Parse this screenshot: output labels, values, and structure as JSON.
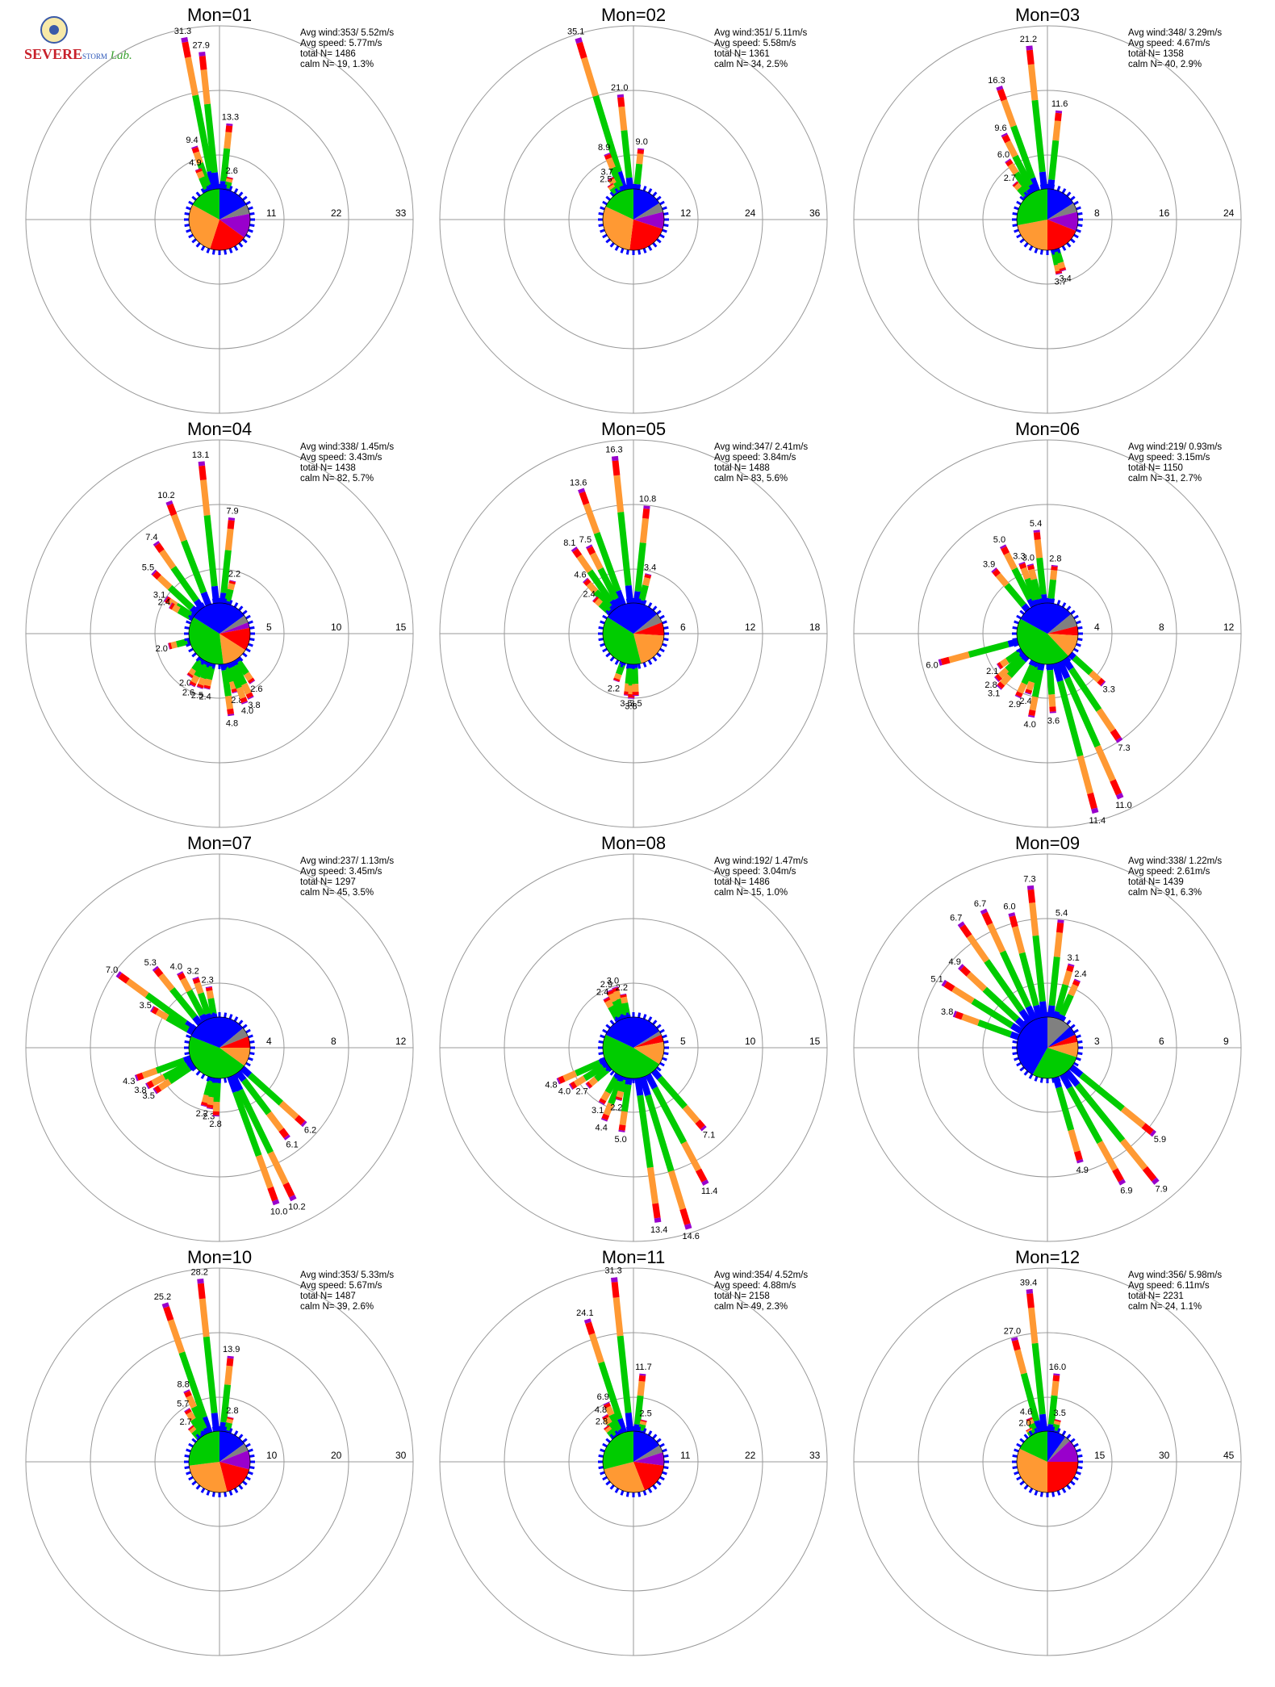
{
  "logo": {
    "line1": "SEVERE",
    "line2": "STORM",
    "line3": "Lab."
  },
  "colors": {
    "calm": "#808080",
    "blue": "#0000ff",
    "green": "#00cc00",
    "orange": "#ff9933",
    "red": "#ff0000",
    "purple": "#9900cc",
    "grid": "#999999"
  },
  "chart_data": [
    {
      "type": "polar-bar",
      "title": "Mon=01",
      "stats": [
        "Avg wind:353/ 5.52m/s",
        "Avg speed: 5.77m/s",
        "total N=      1486",
        "calm N=    19,   1.3%"
      ],
      "rings": [
        "11",
        "22",
        "33"
      ],
      "rmax": 33,
      "bars": [
        [
          349,
          31.3,
          "31.3"
        ],
        [
          354,
          27.9,
          "27.9"
        ],
        [
          6,
          13.3,
          "13.3"
        ],
        [
          341,
          9.4,
          "9.4"
        ],
        [
          337,
          4.9,
          "4.9"
        ],
        [
          14,
          2.6,
          "2.6"
        ]
      ],
      "pie": [
        [
          0.17,
          "blue"
        ],
        [
          0.05,
          "calm"
        ],
        [
          0.13,
          "purple"
        ],
        [
          0.2,
          "red"
        ],
        [
          0.28,
          "orange"
        ],
        [
          0.17,
          "green"
        ]
      ]
    },
    {
      "type": "polar-bar",
      "title": "Mon=02",
      "stats": [
        "Avg wind:351/ 5.11m/s",
        "Avg speed: 5.58m/s",
        "total N=      1361",
        "calm N=    34,   2.5%"
      ],
      "rings": [
        "12",
        "24",
        "36"
      ],
      "rmax": 36,
      "bars": [
        [
          343,
          35.1,
          "35.1"
        ],
        [
          354,
          21.0,
          "21.0"
        ],
        [
          6,
          9.0,
          "9.0"
        ],
        [
          338,
          8.9,
          "8.9"
        ],
        [
          331,
          3.7,
          "3.7"
        ],
        [
          326,
          2.5,
          "2.5"
        ]
      ],
      "pie": [
        [
          0.16,
          "blue"
        ],
        [
          0.05,
          "calm"
        ],
        [
          0.09,
          "purple"
        ],
        [
          0.22,
          "red"
        ],
        [
          0.3,
          "orange"
        ],
        [
          0.18,
          "green"
        ]
      ]
    },
    {
      "type": "polar-bar",
      "title": "Mon=03",
      "stats": [
        "Avg wind:348/ 3.29m/s",
        "Avg speed: 4.67m/s",
        "total N=      1358",
        "calm N=    40,   2.9%"
      ],
      "rings": [
        "8",
        "16",
        "24"
      ],
      "rmax": 24,
      "bars": [
        [
          354,
          21.2,
          "21.2"
        ],
        [
          340,
          16.3,
          "16.3"
        ],
        [
          6,
          11.6,
          "11.6"
        ],
        [
          333,
          9.6,
          "9.6"
        ],
        [
          326,
          6.0,
          "6.0"
        ],
        [
          318,
          2.7,
          "2.7"
        ],
        [
          168,
          3.7,
          "3.7"
        ],
        [
          163,
          3.4,
          "3.4"
        ]
      ],
      "pie": [
        [
          0.16,
          "blue"
        ],
        [
          0.05,
          "calm"
        ],
        [
          0.1,
          "purple"
        ],
        [
          0.19,
          "red"
        ],
        [
          0.22,
          "orange"
        ],
        [
          0.28,
          "green"
        ]
      ]
    },
    {
      "type": "polar-bar",
      "title": "Mon=04",
      "stats": [
        "Avg wind:338/ 1.45m/s",
        "Avg speed: 3.43m/s",
        "total N=      1438",
        "calm N=    82,   5.7%"
      ],
      "rings": [
        "5",
        "10",
        "15"
      ],
      "rmax": 15,
      "bars": [
        [
          354,
          13.1,
          "13.1"
        ],
        [
          339,
          10.2,
          "10.2"
        ],
        [
          6,
          7.9,
          "7.9"
        ],
        [
          325,
          7.4,
          "7.4"
        ],
        [
          313,
          5.5,
          "5.5"
        ],
        [
          303,
          3.1,
          "3.1"
        ],
        [
          300,
          2.4,
          "2.4"
        ],
        [
          14,
          2.2,
          "2.2"
        ],
        [
          256,
          2.0,
          "2.0"
        ],
        [
          215,
          2.0,
          "2.0"
        ],
        [
          208,
          2.6,
          "2.6"
        ],
        [
          200,
          2.5,
          "2.5"
        ],
        [
          193,
          2.4,
          "2.4"
        ],
        [
          172,
          4.8,
          "4.8"
        ],
        [
          165,
          2.8,
          "2.8"
        ],
        [
          160,
          4.0,
          "4.0"
        ],
        [
          154,
          3.8,
          "3.8"
        ],
        [
          146,
          2.6,
          "2.6"
        ]
      ],
      "pie": [
        [
          0.15,
          "blue"
        ],
        [
          0.04,
          "calm"
        ],
        [
          0.03,
          "purple"
        ],
        [
          0.12,
          "red"
        ],
        [
          0.14,
          "orange"
        ],
        [
          0.36,
          "green"
        ],
        [
          0.16,
          "blue"
        ]
      ]
    },
    {
      "type": "polar-bar",
      "title": "Mon=05",
      "stats": [
        "Avg wind:347/ 2.41m/s",
        "Avg speed: 3.84m/s",
        "total N=      1488",
        "calm N=    83,   5.6%"
      ],
      "rings": [
        "6",
        "12",
        "18"
      ],
      "rmax": 18,
      "bars": [
        [
          354,
          16.3,
          "16.3"
        ],
        [
          340,
          13.6,
          "13.6"
        ],
        [
          6,
          10.8,
          "10.8"
        ],
        [
          333,
          7.5,
          "7.5"
        ],
        [
          325,
          8.1,
          "8.1"
        ],
        [
          318,
          4.6,
          "4.6"
        ],
        [
          312,
          2.4,
          "2.4"
        ],
        [
          14,
          3.4,
          "3.4"
        ],
        [
          200,
          2.2,
          "2.2"
        ],
        [
          186,
          3.5,
          "3.5"
        ],
        [
          182,
          3.8,
          "3.8"
        ],
        [
          178,
          3.5,
          "3.5"
        ]
      ],
      "pie": [
        [
          0.14,
          "blue"
        ],
        [
          0.05,
          "calm"
        ],
        [
          0.07,
          "red"
        ],
        [
          0.2,
          "orange"
        ],
        [
          0.38,
          "green"
        ],
        [
          0.16,
          "blue"
        ]
      ]
    },
    {
      "type": "polar-bar",
      "title": "Mon=06",
      "stats": [
        "Avg wind:219/ 0.93m/s",
        "Avg speed: 3.15m/s",
        "total N=      1150",
        "calm N=    31,   2.7%"
      ],
      "rings": [
        "4",
        "8",
        "12"
      ],
      "rmax": 12,
      "bars": [
        [
          354,
          5.4,
          "5.4"
        ],
        [
          333,
          5.0,
          "5.0"
        ],
        [
          340,
          3.3,
          "3.3"
        ],
        [
          346,
          3.0,
          "3.0"
        ],
        [
          6,
          2.8,
          "2.8"
        ],
        [
          320,
          3.9,
          "3.9"
        ],
        [
          255,
          6.0,
          "6.0"
        ],
        [
          236,
          2.1,
          "2.1"
        ],
        [
          228,
          2.8,
          "2.8"
        ],
        [
          222,
          3.1,
          "3.1"
        ],
        [
          205,
          2.9,
          "2.9"
        ],
        [
          198,
          2.4,
          "2.4"
        ],
        [
          191,
          4.0,
          "4.0"
        ],
        [
          176,
          3.6,
          "3.6"
        ],
        [
          165,
          11.4,
          "11.4"
        ],
        [
          156,
          11.0,
          "11.0"
        ],
        [
          146,
          7.3,
          "7.3"
        ],
        [
          132,
          3.3,
          "3.3"
        ]
      ],
      "pie": [
        [
          0.14,
          "blue"
        ],
        [
          0.07,
          "calm"
        ],
        [
          0.05,
          "red"
        ],
        [
          0.12,
          "orange"
        ],
        [
          0.45,
          "green"
        ],
        [
          0.17,
          "blue"
        ]
      ]
    },
    {
      "type": "polar-bar",
      "title": "Mon=07",
      "stats": [
        "Avg wind:237/ 1.13m/s",
        "Avg speed: 3.45m/s",
        "total N=      1297",
        "calm N=    45,   3.5%"
      ],
      "rings": [
        "4",
        "8",
        "12"
      ],
      "rmax": 12,
      "bars": [
        [
          306,
          7.0,
          "7.0"
        ],
        [
          321,
          5.3,
          "5.3"
        ],
        [
          332,
          4.0,
          "4.0"
        ],
        [
          341,
          3.2,
          "3.2"
        ],
        [
          350,
          2.3,
          "2.3"
        ],
        [
          300,
          3.5,
          "3.5"
        ],
        [
          250,
          4.3,
          "4.3"
        ],
        [
          242,
          3.8,
          "3.8"
        ],
        [
          236,
          3.5,
          "3.5"
        ],
        [
          195,
          2.2,
          "2.2"
        ],
        [
          189,
          2.3,
          "2.3"
        ],
        [
          183,
          2.8,
          "2.8"
        ],
        [
          160,
          10.0,
          "10.0"
        ],
        [
          154,
          10.2,
          "10.2"
        ],
        [
          143,
          6.1,
          "6.1"
        ],
        [
          132,
          6.2,
          "6.2"
        ]
      ],
      "pie": [
        [
          0.14,
          "blue"
        ],
        [
          0.05,
          "calm"
        ],
        [
          0.06,
          "red"
        ],
        [
          0.1,
          "orange"
        ],
        [
          0.46,
          "green"
        ],
        [
          0.19,
          "blue"
        ]
      ]
    },
    {
      "type": "polar-bar",
      "title": "Mon=08",
      "stats": [
        "Avg wind:192/ 1.47m/s",
        "Avg speed: 3.04m/s",
        "total N=      1486",
        "calm N=    15,   1.0%"
      ],
      "rings": [
        "5",
        "10",
        "15"
      ],
      "rmax": 15,
      "bars": [
        [
          343,
          3.0,
          "3.0"
        ],
        [
          337,
          2.9,
          "2.9"
        ],
        [
          331,
          2.4,
          "2.4"
        ],
        [
          349,
          2.2,
          "2.2"
        ],
        [
          246,
          4.8,
          "4.8"
        ],
        [
          238,
          4.0,
          "4.0"
        ],
        [
          230,
          2.7,
          "2.7"
        ],
        [
          210,
          3.1,
          "3.1"
        ],
        [
          202,
          4.4,
          "4.4"
        ],
        [
          196,
          2.2,
          "2.2"
        ],
        [
          188,
          5.0,
          "5.0"
        ],
        [
          172,
          13.4,
          "13.4"
        ],
        [
          163,
          14.6,
          "14.6"
        ],
        [
          152,
          11.4,
          "11.4"
        ],
        [
          139,
          7.1,
          "7.1"
        ]
      ],
      "pie": [
        [
          0.16,
          "blue"
        ],
        [
          0.02,
          "calm"
        ],
        [
          0.04,
          "red"
        ],
        [
          0.12,
          "orange"
        ],
        [
          0.48,
          "green"
        ],
        [
          0.18,
          "blue"
        ]
      ]
    },
    {
      "type": "polar-bar",
      "title": "Mon=09",
      "stats": [
        "Avg wind:338/ 1.22m/s",
        "Avg speed: 2.61m/s",
        "total N=      1439",
        "calm N=    91,   6.3%"
      ],
      "rings": [
        "3",
        "6",
        "9"
      ],
      "rmax": 9,
      "bars": [
        [
          354,
          7.3,
          "7.3"
        ],
        [
          325,
          6.7,
          "6.7"
        ],
        [
          335,
          6.7,
          "6.7"
        ],
        [
          345,
          6.0,
          "6.0"
        ],
        [
          6,
          5.4,
          "5.4"
        ],
        [
          302,
          5.1,
          "5.1"
        ],
        [
          313,
          4.9,
          "4.9"
        ],
        [
          290,
          3.8,
          "3.8"
        ],
        [
          16,
          3.1,
          "3.1"
        ],
        [
          24,
          2.4,
          "2.4"
        ],
        [
          164,
          4.9,
          "4.9"
        ],
        [
          151,
          6.9,
          "6.9"
        ],
        [
          141,
          7.9,
          "7.9"
        ],
        [
          129,
          5.9,
          "5.9"
        ]
      ],
      "pie": [
        [
          0.13,
          "calm"
        ],
        [
          0.05,
          "blue"
        ],
        [
          0.04,
          "red"
        ],
        [
          0.08,
          "orange"
        ],
        [
          0.28,
          "green"
        ],
        [
          0.42,
          "blue"
        ]
      ]
    },
    {
      "type": "polar-bar",
      "title": "Mon=10",
      "stats": [
        "Avg wind:353/ 5.33m/s",
        "Avg speed: 5.67m/s",
        "total N=      1487",
        "calm N=    39,   2.6%"
      ],
      "rings": [
        "10",
        "20",
        "30"
      ],
      "rmax": 30,
      "bars": [
        [
          354,
          28.2,
          "28.2"
        ],
        [
          341,
          25.2,
          "25.2"
        ],
        [
          6,
          13.9,
          "13.9"
        ],
        [
          335,
          8.8,
          "8.8"
        ],
        [
          328,
          5.7,
          "5.7"
        ],
        [
          320,
          2.7,
          "2.7"
        ],
        [
          14,
          2.8,
          "2.8"
        ]
      ],
      "pie": [
        [
          0.15,
          "blue"
        ],
        [
          0.04,
          "calm"
        ],
        [
          0.1,
          "purple"
        ],
        [
          0.17,
          "red"
        ],
        [
          0.27,
          "orange"
        ],
        [
          0.27,
          "green"
        ]
      ]
    },
    {
      "type": "polar-bar",
      "title": "Mon=11",
      "stats": [
        "Avg wind:354/ 4.52m/s",
        "Avg speed: 4.88m/s",
        "total N=      2158",
        "calm N=    49,   2.3%"
      ],
      "rings": [
        "11",
        "22",
        "33"
      ],
      "rmax": 33,
      "bars": [
        [
          354,
          31.3,
          "31.3"
        ],
        [
          342,
          24.1,
          "24.1"
        ],
        [
          6,
          11.7,
          "11.7"
        ],
        [
          335,
          6.9,
          "6.9"
        ],
        [
          328,
          4.8,
          "4.8"
        ],
        [
          322,
          2.8,
          "2.8"
        ],
        [
          14,
          2.5,
          "2.5"
        ]
      ],
      "pie": [
        [
          0.16,
          "blue"
        ],
        [
          0.04,
          "calm"
        ],
        [
          0.07,
          "purple"
        ],
        [
          0.17,
          "red"
        ],
        [
          0.27,
          "orange"
        ],
        [
          0.29,
          "green"
        ]
      ]
    },
    {
      "type": "polar-bar",
      "title": "Mon=12",
      "stats": [
        "Avg wind:356/ 5.98m/s",
        "Avg speed: 6.11m/s",
        "total N=      2231",
        "calm N=    24,   1.1%"
      ],
      "rings": [
        "15",
        "30",
        "45"
      ],
      "rmax": 45,
      "bars": [
        [
          354,
          39.4,
          "39.4"
        ],
        [
          345,
          27.0,
          "27.0"
        ],
        [
          6,
          16.0,
          "16.0"
        ],
        [
          337,
          4.6,
          "4.6"
        ],
        [
          330,
          2.0,
          "2.0"
        ],
        [
          14,
          3.5,
          "3.5"
        ]
      ],
      "pie": [
        [
          0.1,
          "blue"
        ],
        [
          0.03,
          "calm"
        ],
        [
          0.12,
          "purple"
        ],
        [
          0.25,
          "red"
        ],
        [
          0.32,
          "orange"
        ],
        [
          0.18,
          "green"
        ]
      ]
    }
  ]
}
